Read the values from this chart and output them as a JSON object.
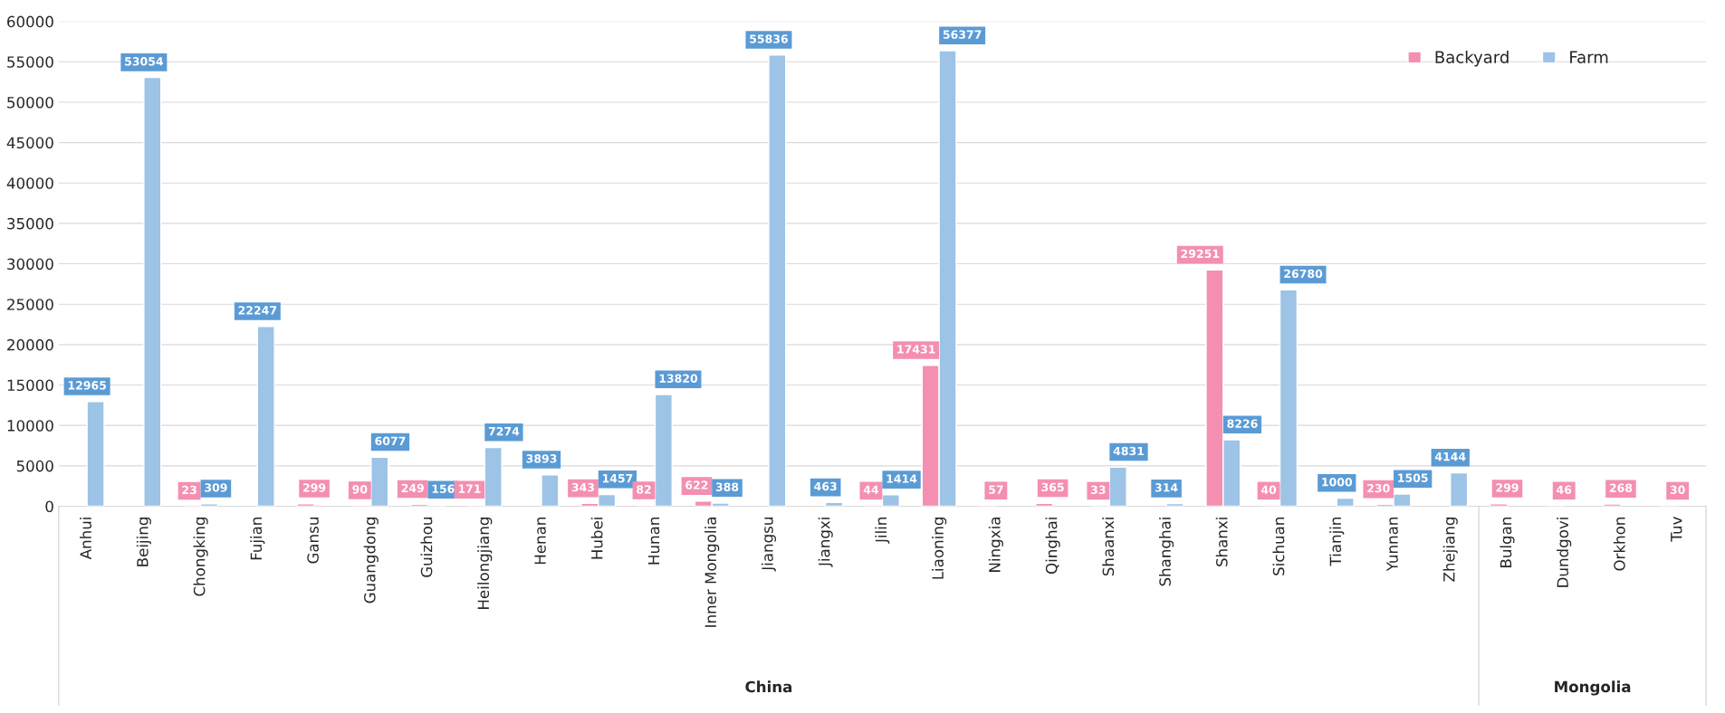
{
  "chart_data": {
    "type": "bar",
    "categories": [
      "Anhui",
      "Beijing",
      "Chongking",
      "Fujian",
      "Gansu",
      "Guangdong",
      "Guizhou",
      "Heilongjiang",
      "Henan",
      "Hubei",
      "Hunan",
      "Inner Mongolia",
      "Jiangsu",
      "Jiangxi",
      "Jilin",
      "Liaoning",
      "Ningxia",
      "Qinghai",
      "Shaanxi",
      "Shanghai",
      "Shanxi",
      "Sichuan",
      "Tianjin",
      "Yunnan",
      "Zhejiang",
      "Bulgan",
      "Dundgovi",
      "Orkhon",
      "Tuv"
    ],
    "series": [
      {
        "name": "Backyard",
        "color": "#f48fb1",
        "values": [
          null,
          null,
          23,
          null,
          299,
          90,
          249,
          171,
          null,
          343,
          82,
          622,
          null,
          null,
          44,
          17431,
          57,
          365,
          33,
          null,
          29251,
          40,
          null,
          230,
          null,
          299,
          46,
          268,
          30
        ]
      },
      {
        "name": "Farm",
        "color": "#9dc3e6",
        "values": [
          12965,
          53054,
          309,
          22247,
          null,
          6077,
          156,
          7274,
          3893,
          1457,
          13820,
          388,
          55836,
          463,
          1414,
          56377,
          null,
          null,
          4831,
          314,
          8226,
          26780,
          1000,
          1505,
          4144,
          null,
          null,
          null,
          null
        ]
      }
    ],
    "annotations": [
      "China",
      "Mongolia"
    ],
    "ylim": [
      0,
      60000
    ],
    "yticks": [
      0,
      5000,
      10000,
      15000,
      20000,
      25000,
      30000,
      35000,
      40000,
      45000,
      50000,
      55000,
      60000
    ],
    "grid": "y",
    "legend": "top right",
    "data_labels": true
  }
}
